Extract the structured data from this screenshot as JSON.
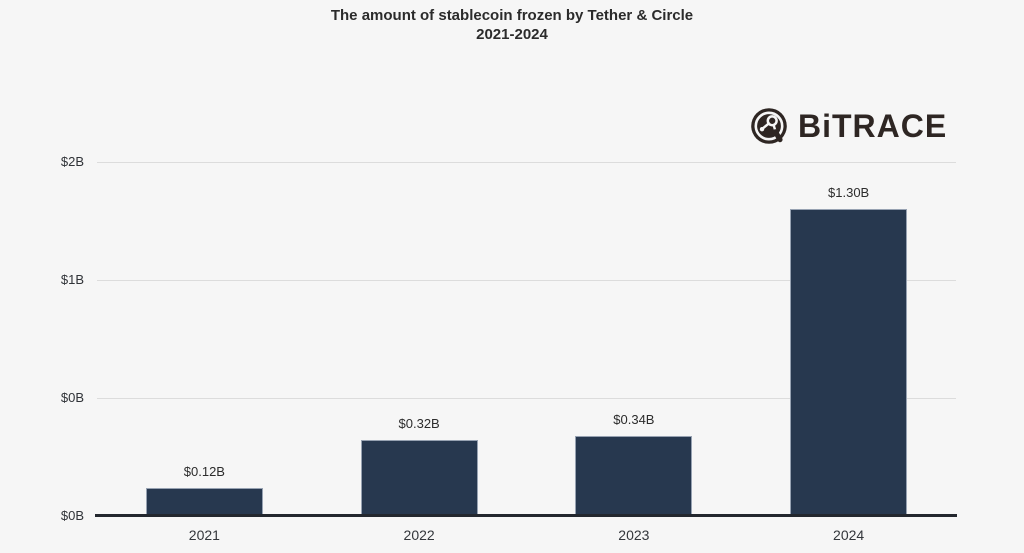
{
  "page": {
    "background": "#f6f6f6"
  },
  "logo": {
    "brand": "BiTRACE",
    "icon": "bitrace-molecule-icon",
    "color": "#2e2623"
  },
  "chart_data": {
    "type": "bar",
    "title": "The amount of stablecoin frozen by Tether & Circle",
    "subtitle": "2021-2024",
    "categories": [
      "2021",
      "2022",
      "2023",
      "2024"
    ],
    "values": [
      0.12,
      0.32,
      0.34,
      1.3
    ],
    "value_labels": [
      "$0.12B",
      "$0.32B",
      "$0.34B",
      "$1.30B"
    ],
    "yticks": [
      {
        "value": 0,
        "label": "$0B"
      },
      {
        "value": 0.5,
        "label": "$0B"
      },
      {
        "value": 1,
        "label": "$1B"
      },
      {
        "value": 1.5,
        "label": "$2B"
      }
    ],
    "ylim": [
      0,
      1.5
    ],
    "xlabel": "",
    "ylabel": "",
    "grid": "horizontal",
    "legend": "none",
    "bar_color": "#27384f",
    "bar_border_color": "#97a2b2",
    "gridline_color": "#dcdcdc",
    "axis_line_color": "#23272e",
    "label_color": "#2c2c2c"
  }
}
